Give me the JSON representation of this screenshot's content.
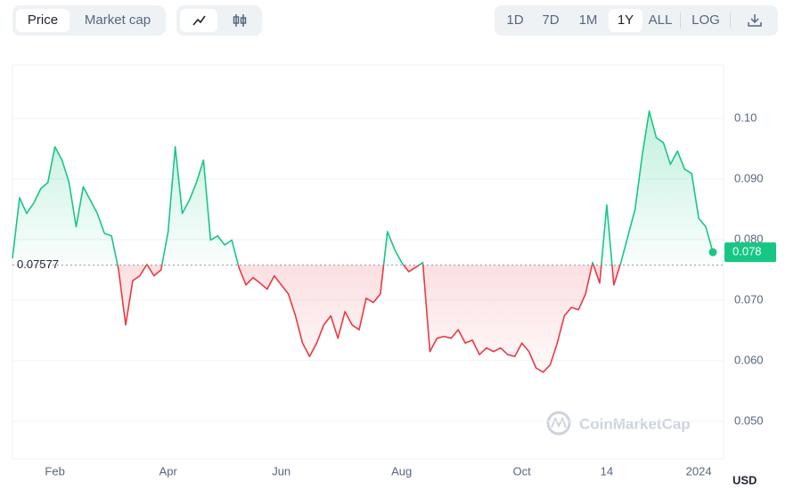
{
  "toolbar": {
    "price": "Price",
    "market_cap": "Market cap",
    "ranges": [
      "1D",
      "7D",
      "1M",
      "1Y",
      "ALL"
    ],
    "log": "LOG"
  },
  "watermark": "CoinMarketCap",
  "chart_data": {
    "type": "line",
    "y_label": "USD",
    "categories": [
      null,
      null,
      null,
      null,
      null,
      null,
      "Feb",
      null,
      null,
      null,
      null,
      null,
      null,
      null,
      null,
      null,
      null,
      null,
      null,
      null,
      null,
      null,
      "Apr",
      null,
      null,
      null,
      null,
      null,
      null,
      null,
      null,
      null,
      null,
      null,
      null,
      null,
      null,
      null,
      "Jun",
      null,
      null,
      null,
      null,
      null,
      null,
      null,
      null,
      null,
      null,
      null,
      null,
      null,
      null,
      null,
      null,
      "Aug",
      null,
      null,
      null,
      null,
      null,
      null,
      null,
      null,
      null,
      null,
      null,
      null,
      null,
      null,
      null,
      null,
      "Oct",
      null,
      null,
      null,
      null,
      null,
      null,
      null,
      null,
      null,
      null,
      null,
      "14",
      null,
      null,
      null,
      null,
      null,
      null,
      null,
      null,
      null,
      null,
      null,
      null,
      "2024",
      null,
      null
    ],
    "values": [
      0.0769,
      0.0869,
      0.0843,
      0.086,
      0.0884,
      0.0894,
      0.0953,
      0.0931,
      0.0894,
      0.0821,
      0.0887,
      0.0865,
      0.0843,
      0.081,
      0.0806,
      0.075,
      0.0659,
      0.0732,
      0.074,
      0.0759,
      0.074,
      0.075,
      0.0813,
      0.0953,
      0.0843,
      0.0865,
      0.0894,
      0.0931,
      0.0799,
      0.0806,
      0.0791,
      0.0799,
      0.0754,
      0.0725,
      0.0737,
      0.0728,
      0.0718,
      0.074,
      0.0725,
      0.071,
      0.0674,
      0.0629,
      0.0607,
      0.0629,
      0.0659,
      0.0674,
      0.0637,
      0.0681,
      0.0659,
      0.0651,
      0.0703,
      0.0696,
      0.071,
      0.0813,
      0.0784,
      0.0762,
      0.0747,
      0.0754,
      0.0762,
      0.0615,
      0.0637,
      0.064,
      0.0637,
      0.0651,
      0.0629,
      0.0634,
      0.061,
      0.0621,
      0.0615,
      0.0621,
      0.061,
      0.0607,
      0.0629,
      0.0615,
      0.0588,
      0.0581,
      0.0593,
      0.0629,
      0.0674,
      0.0688,
      0.0684,
      0.071,
      0.0762,
      0.0728,
      0.0857,
      0.0725,
      0.0762,
      0.0806,
      0.085,
      0.0938,
      0.1012,
      0.0968,
      0.096,
      0.0924,
      0.0946,
      0.0916,
      0.0909,
      0.0835,
      0.0821,
      0.0779
    ],
    "value_labels": [
      null,
      null,
      null,
      null,
      null,
      null,
      null,
      null,
      null,
      null,
      null,
      null,
      null,
      null,
      null,
      null,
      null,
      null,
      null,
      null,
      null,
      null,
      null,
      null,
      null,
      null,
      null,
      null,
      null,
      null,
      null,
      null,
      null,
      null,
      null,
      null,
      null,
      null,
      null,
      null,
      null,
      null,
      null,
      null,
      null,
      null,
      null,
      null,
      null,
      null,
      null,
      null,
      null,
      null,
      null,
      null,
      null,
      null,
      null,
      null,
      null,
      null,
      null,
      null,
      null,
      null,
      null,
      null,
      null,
      null,
      null,
      null,
      null,
      null,
      null,
      null,
      null,
      null,
      null,
      null,
      null,
      null,
      null,
      null,
      null,
      null,
      null,
      null,
      null,
      null,
      null,
      null,
      null,
      null,
      null,
      null,
      null,
      null,
      null,
      "0.078"
    ],
    "baseline": 0.07577,
    "up_color": "#16c784",
    "down_color": "#ea3943",
    "ylim": [
      0.0438,
      0.1088
    ],
    "yticks": [
      {
        "value": 0.05,
        "label": "0.050"
      },
      {
        "value": 0.06,
        "label": "0.060"
      },
      {
        "value": 0.07,
        "label": "0.070"
      },
      {
        "value": 0.08,
        "label": "0.080"
      },
      {
        "value": 0.09,
        "label": "0.090"
      },
      {
        "value": 0.1,
        "label": "0.10"
      }
    ],
    "grid": true
  }
}
